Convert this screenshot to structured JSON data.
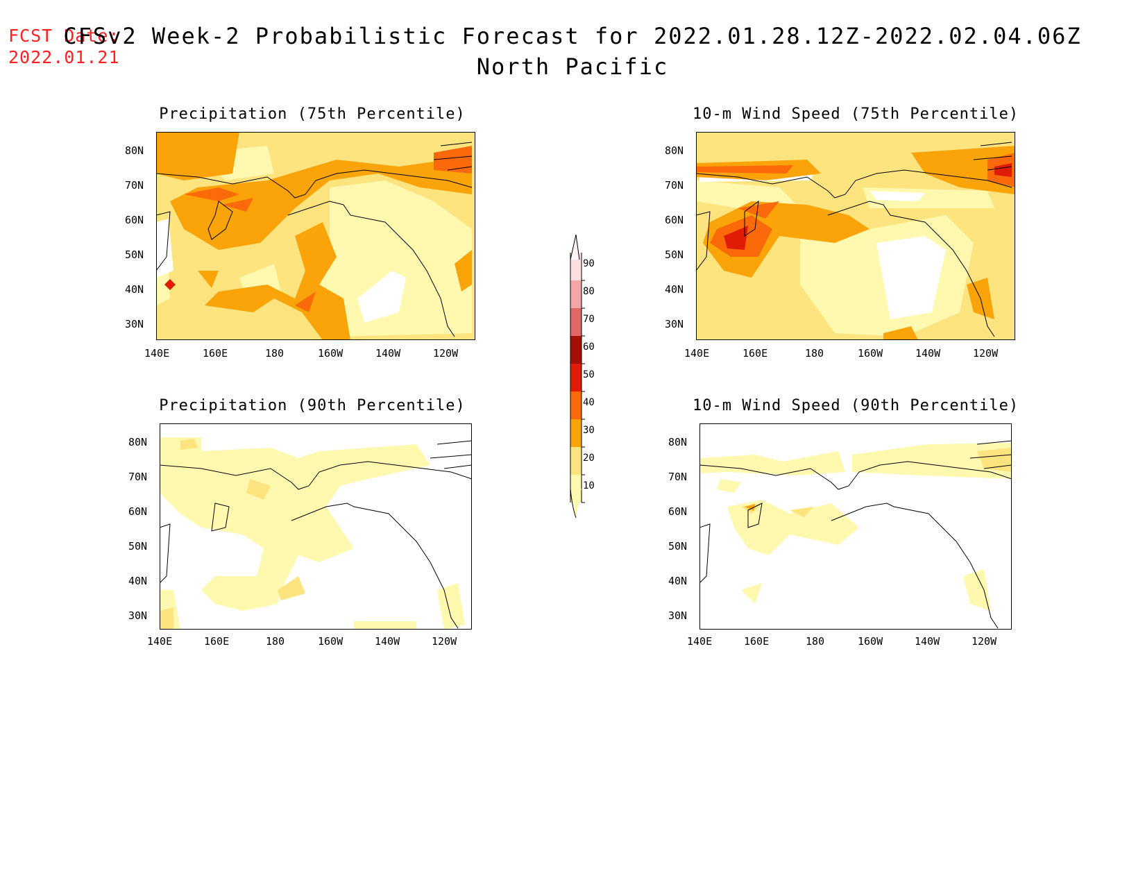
{
  "header": {
    "fcst_label": "FCST Date:",
    "fcst_date": "2022.01.21",
    "title_line1": "CFSv2 Week-2 Probabilistic Forecast for 2022.01.28.12Z-2022.02.04.06Z",
    "title_line2": "North Pacific"
  },
  "panels": [
    {
      "title": "Precipitation (75th Percentile)"
    },
    {
      "title": "10-m Wind Speed (75th Percentile)"
    },
    {
      "title": "Precipitation (90th Percentile)"
    },
    {
      "title": "10-m Wind Speed (90th Percentile)"
    }
  ],
  "axes": {
    "lat_labels": [
      "80N",
      "70N",
      "60N",
      "50N",
      "40N",
      "30N"
    ],
    "lon_labels": [
      "140E",
      "160E",
      "180",
      "160W",
      "140W",
      "120W"
    ]
  },
  "colorbar": {
    "levels": [
      "10",
      "20",
      "30",
      "40",
      "50",
      "60",
      "70",
      "80",
      "90"
    ],
    "colors": [
      "#fff9b0",
      "#fde47e",
      "#fba40a",
      "#fb6a0a",
      "#e01c06",
      "#a50f05",
      "#e06767",
      "#f4a5a5",
      "#fde0e0"
    ]
  },
  "colors": {
    "title_red": "#ff2020",
    "c10": "#fff9b0",
    "c20": "#fde47e",
    "c30": "#fba40a",
    "c40": "#fb6a0a",
    "c50": "#e01c06"
  }
}
